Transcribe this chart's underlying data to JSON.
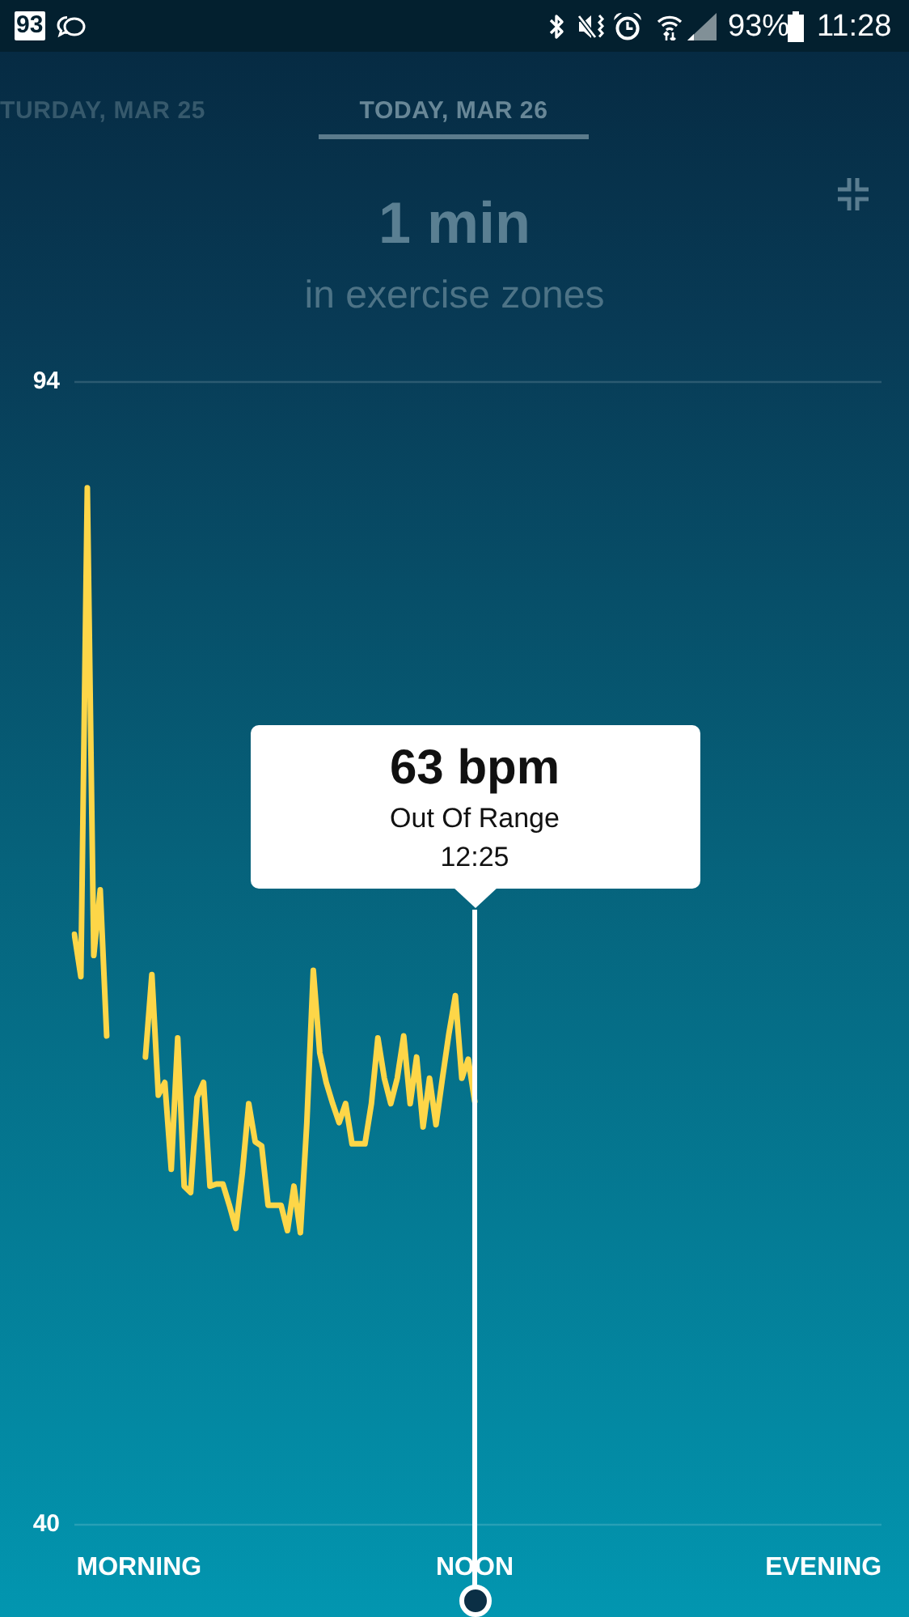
{
  "chart_data": {
    "type": "line",
    "title": "1 min",
    "subtitle": "in exercise zones",
    "categories": [
      null,
      null,
      null,
      null,
      null,
      null,
      null,
      null,
      null,
      null,
      "MORNING",
      null,
      null,
      null,
      null,
      null,
      null,
      null,
      null,
      null,
      null,
      null,
      null,
      null,
      null,
      null,
      null,
      null,
      null,
      null,
      null,
      null,
      null,
      null,
      null,
      null,
      null,
      null,
      null,
      null,
      null,
      null,
      null,
      null,
      null,
      null,
      null,
      null,
      null,
      null,
      null,
      null,
      null,
      null,
      null,
      null,
      null,
      null,
      null,
      null,
      null,
      null,
      "NOON",
      null,
      null,
      null,
      null,
      null,
      null,
      null,
      null,
      null,
      null,
      null,
      null,
      null,
      null,
      null,
      null,
      null,
      null,
      null,
      null,
      null,
      null,
      null,
      null,
      null,
      null,
      null,
      null,
      null,
      null,
      null,
      null,
      null,
      null,
      null,
      null,
      null,
      null,
      null,
      null,
      null,
      null,
      null,
      null,
      null,
      null,
      null,
      null,
      null,
      null,
      null,
      null,
      null,
      "EVENING",
      null,
      null,
      null,
      null,
      null,
      null,
      null,
      null,
      null
    ],
    "values": [
      67.9,
      65.9,
      89.0,
      66.9,
      70.0,
      63.1,
      null,
      null,
      null,
      null,
      null,
      62.1,
      66.0,
      60.3,
      60.9,
      56.8,
      63.0,
      56.0,
      55.7,
      60.2,
      60.9,
      56.0,
      56.1,
      56.1,
      55.1,
      54.0,
      56.6,
      59.9,
      58.1,
      57.9,
      55.1,
      55.1,
      55.1,
      53.9,
      56.0,
      53.8,
      59.0,
      66.2,
      62.3,
      60.9,
      59.9,
      59.0,
      59.9,
      58.0,
      58.0,
      58.0,
      59.9,
      63.0,
      61.1,
      59.9,
      61.1,
      63.1,
      59.9,
      62.1,
      58.8,
      61.1,
      58.9,
      61.1,
      63.2,
      65.0,
      61.1,
      62.0,
      60.0,
      null,
      null,
      null,
      null,
      null,
      null,
      null,
      null,
      null,
      null,
      null,
      null,
      null,
      null,
      null,
      null,
      null,
      null,
      null,
      null,
      null,
      null,
      null,
      null,
      null,
      null,
      null,
      null,
      null,
      null,
      null,
      null,
      null,
      null,
      null,
      null,
      null,
      null,
      null,
      null,
      null,
      null,
      null,
      null,
      null,
      null,
      null,
      null,
      null,
      null,
      null,
      null,
      null,
      null,
      null,
      null,
      null,
      null,
      null,
      null,
      null,
      null,
      null
    ],
    "color": "#fdd648",
    "ylim": [
      40,
      94
    ],
    "yticks": [
      40,
      94
    ],
    "ref_lines": [
      {
        "axis": "x",
        "value": "NOON",
        "color": "#ffffff"
      }
    ],
    "annotations": [
      "63 bpm",
      "Out Of Range",
      "12:25",
      "TURDAY, MAR 25",
      "TODAY, MAR 26",
      "93",
      "93%",
      "11:28"
    ]
  }
}
